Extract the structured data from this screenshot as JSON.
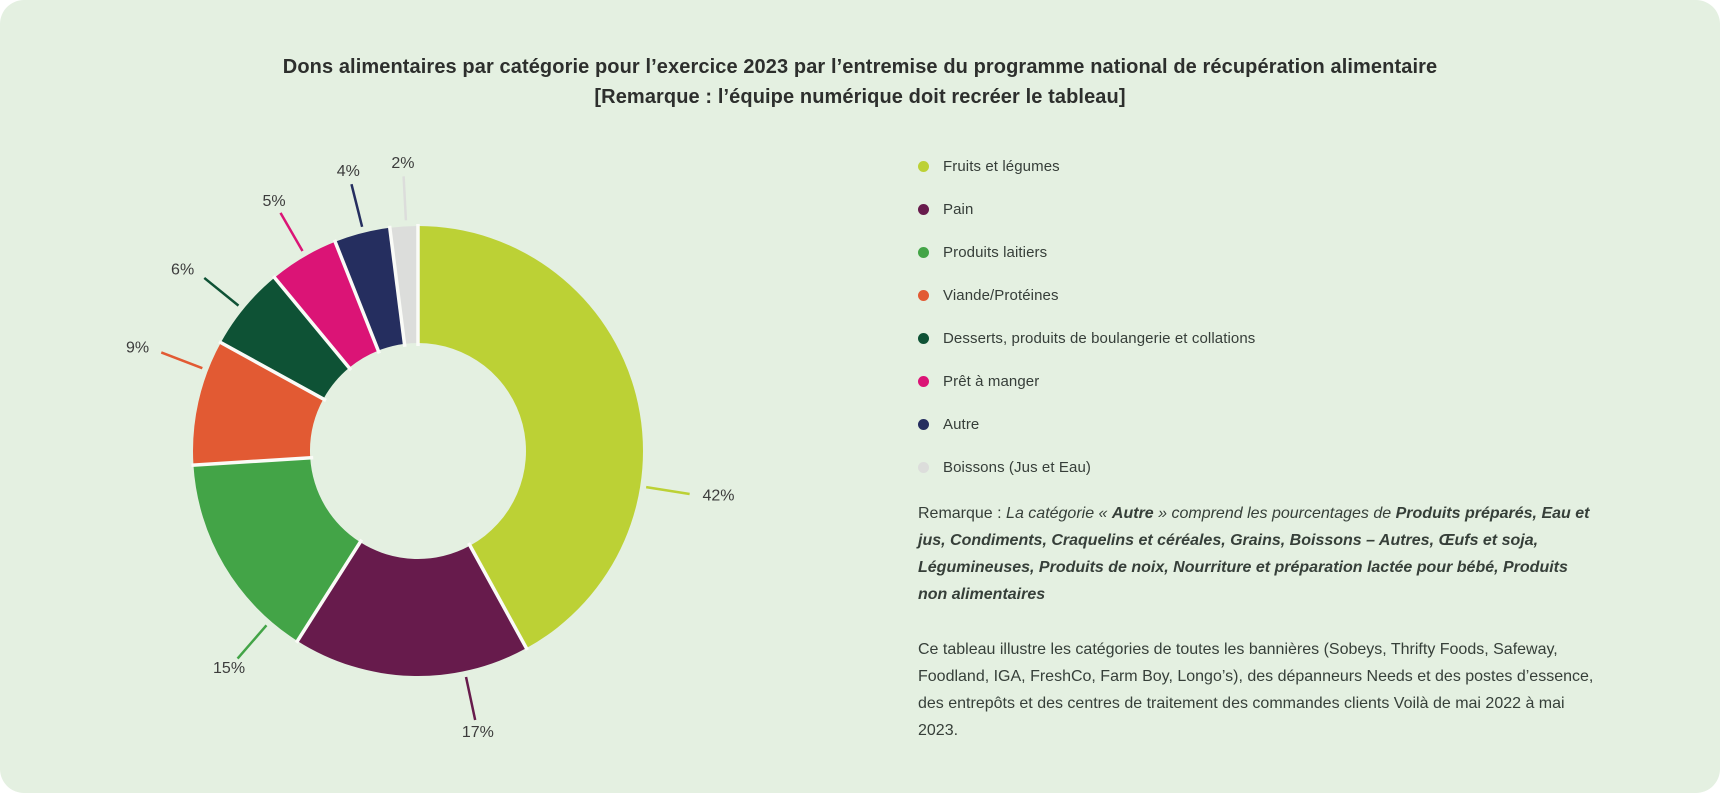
{
  "colors": {
    "panel_background": "#E4F0E1",
    "page_background": "#FFFFFF",
    "title_text": "#2D2F2D",
    "body_text": "#363F39",
    "label_text": "#3C3C3C",
    "slice_gap": "#FAFBF7"
  },
  "title": {
    "line1": "Dons alimentaires par catégorie pour l’exercice 2023 par l’entremise du programme national de récupération alimentaire",
    "line2": "[Remarque : l’équipe numérique doit recréer le tableau]"
  },
  "chart_data": {
    "type": "pie",
    "donut": true,
    "start_angle_deg_from_top": 0,
    "direction": "clockwise",
    "legend_position": "right",
    "unit": "%",
    "categories": [
      "Fruits et légumes",
      "Pain",
      "Produits laitiers",
      "Viande/Protéines",
      "Desserts, produits de boulangerie et collations",
      "Prêt à manger",
      "Autre",
      "Boissons (Jus et Eau)"
    ],
    "values": [
      42,
      17,
      15,
      9,
      6,
      5,
      4,
      2
    ],
    "labels": [
      "42%",
      "17%",
      "15%",
      "9%",
      "6%",
      "5%",
      "4%",
      "2%"
    ],
    "colors": [
      "#BCD135",
      "#671B4C",
      "#43A447",
      "#E25A33",
      "#0E5235",
      "#DB1476",
      "#252E5F",
      "#DCDDDB"
    ],
    "label_angles_deg": [
      99,
      168,
      221,
      291,
      309,
      330,
      346,
      357
    ]
  },
  "note": {
    "segments": [
      {
        "text": "Remarque : ",
        "style": "regular"
      },
      {
        "text": "La catégorie « ",
        "style": "italic"
      },
      {
        "text": "Autre",
        "style": "bold-italic"
      },
      {
        "text": " » comprend les pourcentages de ",
        "style": "italic"
      },
      {
        "text": "Produits préparés, Eau et jus, Condiments, Craquelins et céréales, Grains, Boissons – Autres, Œufs et soja, Légumineuses, Produits de noix, Nourriture et préparation lactée pour bébé, Produits non alimentaires",
        "style": "bold-italic"
      }
    ]
  },
  "description": {
    "text": "Ce tableau illustre les catégories de toutes les bannières (Sobeys, Thrifty Foods, Safeway, Foodland, IGA, FreshCo, Farm Boy, Longo’s), des dépanneurs Needs et des postes d’essence, des entrepôts et des centres de traitement des commandes clients Voilà de mai 2022 à mai 2023."
  }
}
